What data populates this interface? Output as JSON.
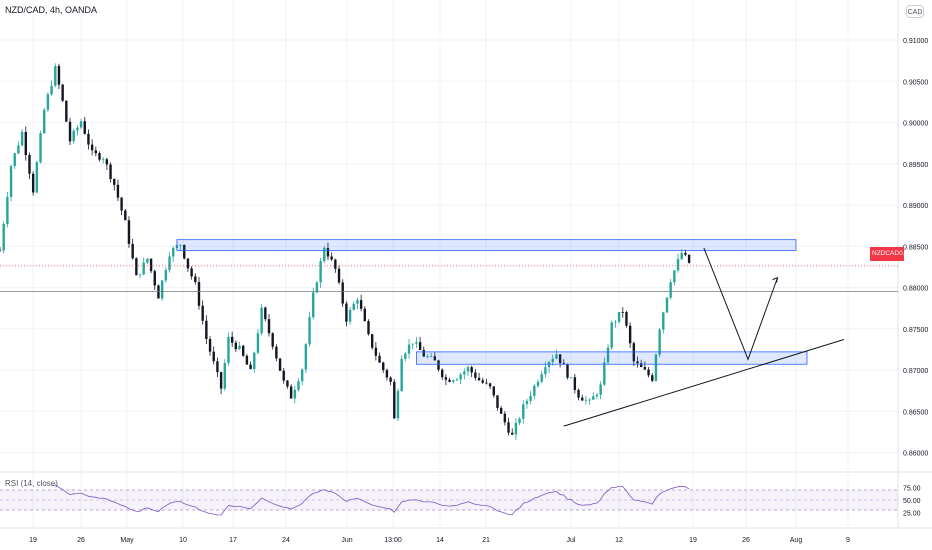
{
  "header": {
    "symbol_title": "NZD/CAD, 4h, OANDA",
    "currency_badge": "CAD"
  },
  "last_price": {
    "symbol": "NZDCAD",
    "value": "0.88262",
    "color": "#f23645"
  },
  "rsi": {
    "title": "RSI (14, close)",
    "ticks": [
      "75.00",
      "50.00",
      "25.00"
    ],
    "band_color": "#7e57c2"
  },
  "chart_data": {
    "type": "candlestick",
    "symbol": "NZD/CAD",
    "timeframe": "4h",
    "source": "OANDA",
    "y_axis": {
      "ylim": [
        0.8597,
        0.9117
      ],
      "ticks": [
        "0.91000",
        "0.90500",
        "0.90000",
        "0.89500",
        "0.89000",
        "0.88500",
        "0.88000",
        "0.87500",
        "0.87000",
        "0.86500",
        "0.86000"
      ]
    },
    "x_axis": {
      "ticks": [
        "19",
        "26",
        "May",
        "10",
        "17",
        "24",
        "Jun",
        "13:00",
        "14",
        "21",
        "Jul",
        "12",
        "19",
        "26",
        "Aug",
        "9"
      ]
    },
    "colors": {
      "up": "#26a69a",
      "down": "#131722",
      "zone": "#2962ff",
      "trendline": "#131722"
    },
    "price_path": [
      [
        0,
        0.8845
      ],
      [
        3,
        0.8948
      ],
      [
        6,
        0.8988
      ],
      [
        9,
        0.8918
      ],
      [
        12,
        0.9015
      ],
      [
        15,
        0.9065
      ],
      [
        17,
        0.9025
      ],
      [
        19,
        0.8978
      ],
      [
        22,
        0.9002
      ],
      [
        25,
        0.8962
      ],
      [
        28,
        0.8958
      ],
      [
        31,
        0.8925
      ],
      [
        34,
        0.8878
      ],
      [
        37,
        0.8812
      ],
      [
        40,
        0.8835
      ],
      [
        43,
        0.879
      ],
      [
        46,
        0.8842
      ],
      [
        49,
        0.8853
      ],
      [
        51,
        0.8825
      ],
      [
        53,
        0.8803
      ],
      [
        56,
        0.8738
      ],
      [
        60,
        0.8678
      ],
      [
        62,
        0.8738
      ],
      [
        65,
        0.8725
      ],
      [
        68,
        0.8697
      ],
      [
        71,
        0.8772
      ],
      [
        74,
        0.8732
      ],
      [
        77,
        0.8685
      ],
      [
        79,
        0.8668
      ],
      [
        82,
        0.8702
      ],
      [
        85,
        0.879
      ],
      [
        88,
        0.885
      ],
      [
        91,
        0.8822
      ],
      [
        94,
        0.8762
      ],
      [
        97,
        0.8788
      ],
      [
        100,
        0.874
      ],
      [
        103,
        0.8708
      ],
      [
        106,
        0.8685
      ],
      [
        107,
        0.864
      ],
      [
        109,
        0.8718
      ],
      [
        112,
        0.8735
      ],
      [
        115,
        0.8718
      ],
      [
        118,
        0.871
      ],
      [
        121,
        0.8688
      ],
      [
        124,
        0.8692
      ],
      [
        127,
        0.8702
      ],
      [
        130,
        0.8688
      ],
      [
        133,
        0.8678
      ],
      [
        136,
        0.8645
      ],
      [
        139,
        0.862
      ],
      [
        142,
        0.8655
      ],
      [
        145,
        0.868
      ],
      [
        148,
        0.8708
      ],
      [
        151,
        0.872
      ],
      [
        154,
        0.8695
      ],
      [
        157,
        0.867
      ],
      [
        160,
        0.866
      ],
      [
        163,
        0.868
      ],
      [
        166,
        0.8755
      ],
      [
        169,
        0.8772
      ],
      [
        172,
        0.871
      ],
      [
        175,
        0.8698
      ],
      [
        177,
        0.869
      ],
      [
        179,
        0.8752
      ],
      [
        182,
        0.881
      ],
      [
        185,
        0.8842
      ],
      [
        187,
        0.883
      ]
    ],
    "annotations": {
      "resistance_zone": {
        "from_x": 48,
        "to_x": 216,
        "y_low": 0.8845,
        "y_high": 0.8858
      },
      "support_zone": {
        "from_x": 113,
        "to_x": 219,
        "y_low": 0.8707,
        "y_high": 0.8722
      },
      "trendline": {
        "from": [
          153,
          0.8632
        ],
        "to": [
          229,
          0.8737
        ]
      },
      "projection_path": [
        [
          191,
          0.8848
        ],
        [
          203,
          0.8713
        ],
        [
          211,
          0.8812
        ]
      ],
      "horizontal_level": 0.8795
    }
  }
}
